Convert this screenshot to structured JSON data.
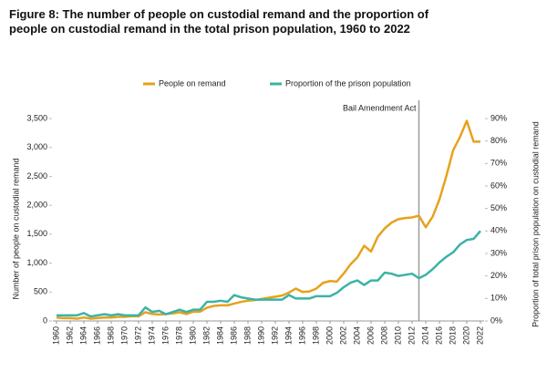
{
  "chart_data": {
    "type": "line",
    "title": "Figure 8: The number of people on custodial remand and the proportion of people on custodial remand in the total prison population, 1960 to 2022",
    "y_label": "Number of people on custodial remand",
    "y2_label": "Proportion of total prison population on custodial remand",
    "annotation": {
      "x": 2013,
      "label": "Bail Amendment Act"
    },
    "x": [
      1960,
      1961,
      1962,
      1963,
      1964,
      1965,
      1966,
      1967,
      1968,
      1969,
      1970,
      1971,
      1972,
      1973,
      1974,
      1975,
      1976,
      1977,
      1978,
      1979,
      1980,
      1981,
      1982,
      1983,
      1984,
      1985,
      1986,
      1987,
      1988,
      1989,
      1990,
      1991,
      1992,
      1993,
      1994,
      1995,
      1996,
      1997,
      1998,
      1999,
      2000,
      2001,
      2002,
      2003,
      2004,
      2005,
      2006,
      2007,
      2008,
      2009,
      2010,
      2011,
      2012,
      2013,
      2014,
      2015,
      2016,
      2017,
      2018,
      2019,
      2020,
      2021,
      2022
    ],
    "xlim": [
      1960,
      2022
    ],
    "xticks": [
      1960,
      1962,
      1964,
      1966,
      1968,
      1970,
      1972,
      1974,
      1976,
      1978,
      1980,
      1982,
      1984,
      1986,
      1988,
      1990,
      1992,
      1994,
      1996,
      1998,
      2000,
      2002,
      2004,
      2006,
      2008,
      2010,
      2012,
      2014,
      2016,
      2018,
      2020,
      2022
    ],
    "ylim": [
      0,
      3500
    ],
    "yticks": [
      0,
      500,
      {
        "value": 1000,
        "label": "1,000"
      },
      {
        "value": 1500,
        "label": "1,500"
      },
      {
        "value": 2000,
        "label": "2,000"
      },
      {
        "value": 2500,
        "label": "2,500"
      },
      {
        "value": 3000,
        "label": "3,000"
      },
      {
        "value": 3500,
        "label": "3,500"
      }
    ],
    "y2lim": [
      0,
      90
    ],
    "y2ticks": [
      {
        "value": 0,
        "label": "0%"
      },
      {
        "value": 10,
        "label": "10%"
      },
      {
        "value": 20,
        "label": "20%"
      },
      {
        "value": 30,
        "label": "30%"
      },
      {
        "value": 40,
        "label": "40%"
      },
      {
        "value": 50,
        "label": "50%"
      },
      {
        "value": 60,
        "label": "60%"
      },
      {
        "value": 70,
        "label": "70%"
      },
      {
        "value": 80,
        "label": "80%"
      },
      {
        "value": 90,
        "label": "90%"
      }
    ],
    "grid": false,
    "legend": "top",
    "series": [
      {
        "name": "People on remand",
        "color": "#e6a21c",
        "values": [
          60,
          50,
          50,
          40,
          60,
          40,
          50,
          60,
          60,
          70,
          70,
          80,
          80,
          150,
          120,
          110,
          120,
          130,
          150,
          120,
          160,
          160,
          230,
          260,
          270,
          270,
          300,
          330,
          350,
          360,
          380,
          400,
          420,
          440,
          490,
          560,
          500,
          510,
          560,
          660,
          690,
          680,
          820,
          980,
          1100,
          1300,
          1200,
          1460,
          1600,
          1700,
          1760,
          1780,
          1790,
          1820,
          1620,
          1800,
          2100,
          2500,
          2950,
          3180,
          3460,
          3100,
          3100
        ]
      },
      {
        "name": "Proportion of the prison population",
        "color": "#3bb3a6",
        "axis": "y2",
        "values": [
          2.5,
          2.5,
          2.5,
          2.5,
          3.5,
          2,
          2.5,
          3,
          2.5,
          3,
          2.5,
          2.5,
          2.5,
          6,
          4,
          4.5,
          3,
          4,
          5,
          4,
          5,
          5,
          8.5,
          8.5,
          9,
          8.5,
          11.5,
          10.5,
          10,
          9.5,
          9.5,
          9.5,
          9.5,
          9.5,
          11.5,
          10,
          10,
          10,
          11,
          11,
          11,
          12.5,
          15,
          17,
          18,
          16,
          18,
          18,
          21.5,
          21,
          20,
          20.5,
          21,
          19,
          20.5,
          23,
          26,
          28.5,
          30.5,
          34,
          36,
          36.5,
          40
        ]
      }
    ]
  }
}
